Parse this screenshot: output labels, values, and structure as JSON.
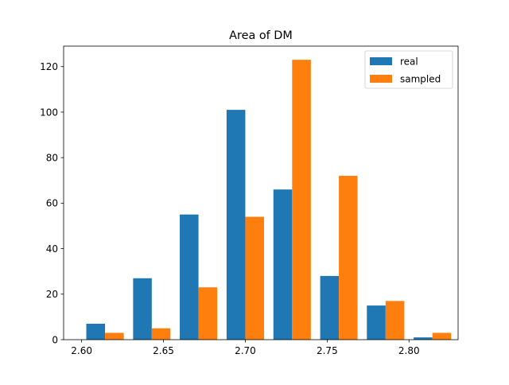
{
  "chart_data": {
    "type": "bar",
    "title": "Area of DM",
    "xlabel": "",
    "ylabel": "",
    "xlim": [
      2.589,
      2.83
    ],
    "ylim": [
      0,
      129
    ],
    "xticks": [
      2.6,
      2.65,
      2.7,
      2.75,
      2.8
    ],
    "xtick_labels": [
      "2.60",
      "2.65",
      "2.70",
      "2.75",
      "2.80"
    ],
    "yticks": [
      0,
      20,
      40,
      60,
      80,
      100,
      120
    ],
    "ytick_labels": [
      "0",
      "20",
      "40",
      "60",
      "80",
      "100",
      "120"
    ],
    "bin_edges": [
      2.6,
      2.6286,
      2.6571,
      2.6857,
      2.7143,
      2.7429,
      2.7714,
      2.8,
      2.8286
    ],
    "grid": false,
    "legend_position": "top-right",
    "series": [
      {
        "name": "real",
        "color": "#1f77b4",
        "values": [
          7,
          27,
          55,
          101,
          66,
          28,
          15,
          1
        ]
      },
      {
        "name": "sampled",
        "color": "#ff7f0e",
        "values": [
          3,
          5,
          23,
          54,
          123,
          72,
          17,
          3
        ]
      }
    ]
  }
}
